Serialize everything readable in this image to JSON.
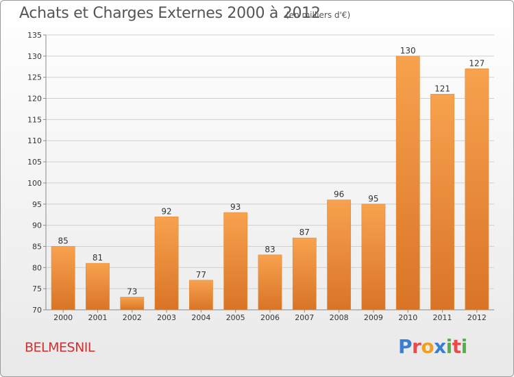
{
  "title": "Achats et Charges Externes 2000 à 2012",
  "subtitle": "(en milliers d'€)",
  "commune": "BELMESNIL",
  "logo": {
    "text": "Proxiti",
    "letters": [
      {
        "ch": "P",
        "color": "#3a7fcf"
      },
      {
        "ch": "r",
        "color": "#e94a4a"
      },
      {
        "ch": "o",
        "color": "#f0a020"
      },
      {
        "ch": "x",
        "color": "#3a7fcf"
      },
      {
        "ch": "i",
        "color": "#56b04a"
      },
      {
        "ch": "t",
        "color": "#e94a4a"
      },
      {
        "ch": "i",
        "color": "#56b04a"
      }
    ]
  },
  "colors": {
    "bar_light": "#f7a24e",
    "bar_dark": "#d97426",
    "grid": "#cfcfcf",
    "axis_text": "#333333"
  },
  "chart_data": {
    "type": "bar",
    "categories": [
      "2000",
      "2001",
      "2002",
      "2003",
      "2004",
      "2005",
      "2006",
      "2007",
      "2008",
      "2009",
      "2010",
      "2011",
      "2012"
    ],
    "values": [
      85,
      81,
      73,
      92,
      77,
      93,
      83,
      87,
      96,
      95,
      130,
      121,
      127
    ],
    "ylim": [
      70,
      135
    ],
    "yticks": [
      70,
      75,
      80,
      85,
      90,
      95,
      100,
      105,
      110,
      115,
      120,
      125,
      130,
      135
    ],
    "grid": true
  }
}
